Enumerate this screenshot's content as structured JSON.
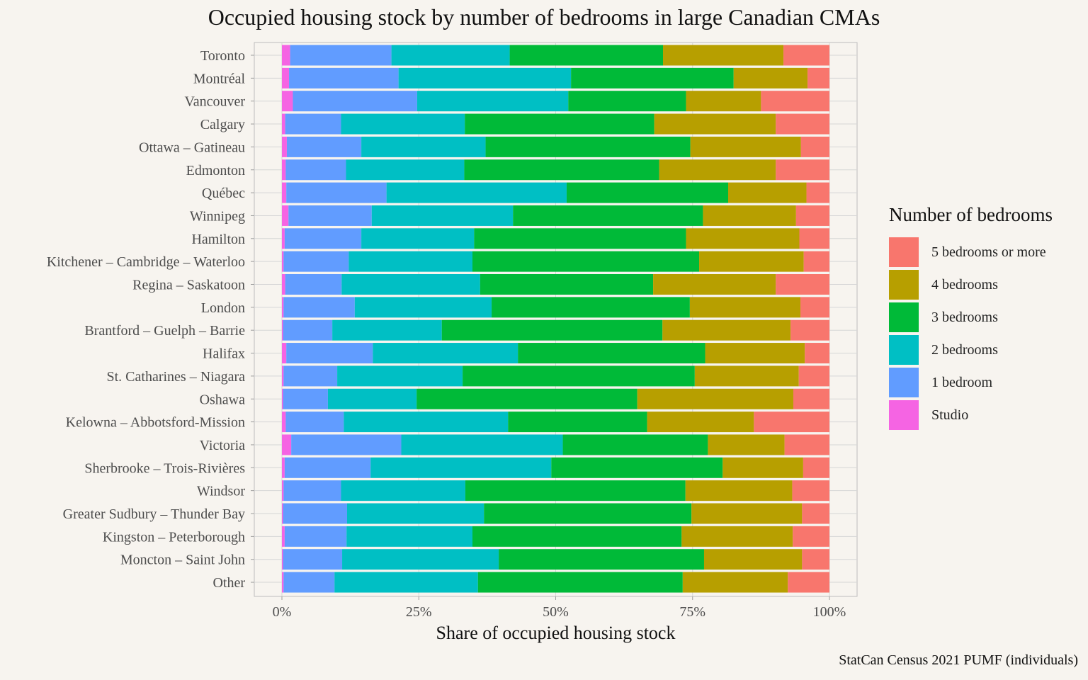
{
  "chart_data": {
    "type": "bar",
    "orientation": "horizontal",
    "stacked": true,
    "title": "Occupied housing stock by number of bedrooms in large Canadian CMAs",
    "xlabel": "Share of occupied housing stock",
    "ylabel": "",
    "xlim": [
      0,
      1
    ],
    "x_ticks": [
      "0%",
      "25%",
      "50%",
      "75%",
      "100%"
    ],
    "caption": "StatCan Census 2021 PUMF (individuals)",
    "legend_title": "Number of bedrooms",
    "legend_position": "right",
    "grid": true,
    "categories": [
      "Toronto",
      "Montréal",
      "Vancouver",
      "Calgary",
      "Ottawa – Gatineau",
      "Edmonton",
      "Québec",
      "Winnipeg",
      "Hamilton",
      "Kitchener – Cambridge – Waterloo",
      "Regina – Saskatoon",
      "London",
      "Brantford – Guelph – Barrie",
      "Halifax",
      "St. Catharines – Niagara",
      "Oshawa",
      "Kelowna – Abbotsford-Mission",
      "Victoria",
      "Sherbrooke – Trois-Rivières",
      "Windsor",
      "Greater Sudbury – Thunder Bay",
      "Kingston – Peterborough",
      "Moncton – Saint John",
      "Other"
    ],
    "series": [
      {
        "name": "Studio",
        "color": "#f564e3",
        "values": [
          0.015,
          0.013,
          0.02,
          0.006,
          0.009,
          0.007,
          0.008,
          0.012,
          0.005,
          0.003,
          0.006,
          0.003,
          0.002,
          0.008,
          0.003,
          0.002,
          0.007,
          0.017,
          0.005,
          0.003,
          0.002,
          0.005,
          0.002,
          0.003
        ]
      },
      {
        "name": "1 bedroom",
        "color": "#619cff",
        "values": [
          0.185,
          0.2,
          0.227,
          0.102,
          0.136,
          0.11,
          0.183,
          0.152,
          0.14,
          0.119,
          0.103,
          0.13,
          0.09,
          0.158,
          0.098,
          0.082,
          0.106,
          0.201,
          0.157,
          0.105,
          0.117,
          0.113,
          0.108,
          0.093
        ]
      },
      {
        "name": "2 bedrooms",
        "color": "#00bfc4",
        "values": [
          0.216,
          0.315,
          0.276,
          0.226,
          0.227,
          0.216,
          0.329,
          0.258,
          0.206,
          0.226,
          0.253,
          0.25,
          0.2,
          0.265,
          0.229,
          0.162,
          0.3,
          0.295,
          0.33,
          0.227,
          0.25,
          0.23,
          0.286,
          0.262
        ]
      },
      {
        "name": "3 bedrooms",
        "color": "#00ba38",
        "values": [
          0.28,
          0.297,
          0.215,
          0.346,
          0.374,
          0.356,
          0.295,
          0.347,
          0.387,
          0.414,
          0.316,
          0.362,
          0.403,
          0.342,
          0.424,
          0.403,
          0.254,
          0.265,
          0.313,
          0.402,
          0.379,
          0.382,
          0.375,
          0.374
        ]
      },
      {
        "name": "4 bedrooms",
        "color": "#b79f00",
        "values": [
          0.22,
          0.135,
          0.137,
          0.222,
          0.202,
          0.213,
          0.143,
          0.17,
          0.207,
          0.191,
          0.224,
          0.202,
          0.234,
          0.182,
          0.19,
          0.285,
          0.195,
          0.14,
          0.147,
          0.195,
          0.202,
          0.203,
          0.179,
          0.192
        ]
      },
      {
        "name": "5 bedrooms or more",
        "color": "#f8766d",
        "values": [
          0.084,
          0.04,
          0.125,
          0.098,
          0.052,
          0.098,
          0.042,
          0.061,
          0.055,
          0.047,
          0.098,
          0.053,
          0.071,
          0.045,
          0.056,
          0.066,
          0.138,
          0.082,
          0.048,
          0.068,
          0.05,
          0.067,
          0.05,
          0.076
        ]
      }
    ],
    "legend_order": [
      "5 bedrooms or more",
      "4 bedrooms",
      "3 bedrooms",
      "2 bedrooms",
      "1 bedroom",
      "Studio"
    ]
  }
}
